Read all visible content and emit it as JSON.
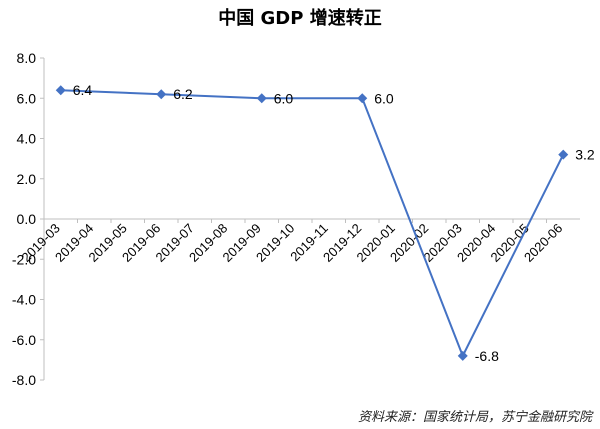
{
  "title": "中国 GDP 增速转正",
  "source": "资料来源：国家统计局，苏宁金融研究院",
  "chart_data": {
    "type": "line",
    "title": "中国 GDP 增速转正",
    "categories": [
      "2019-03",
      "2019-04",
      "2019-05",
      "2019-06",
      "2019-07",
      "2019-08",
      "2019-09",
      "2019-10",
      "2019-11",
      "2019-12",
      "2020-01",
      "2020-02",
      "2020-03",
      "2020-04",
      "2020-05",
      "2020-06"
    ],
    "series": [
      {
        "points": [
          {
            "x": "2019-03",
            "y": 6.4
          },
          {
            "x": "2019-06",
            "y": 6.2
          },
          {
            "x": "2019-09",
            "y": 6.0
          },
          {
            "x": "2019-12",
            "y": 6.0
          },
          {
            "x": "2020-03",
            "y": -6.8
          },
          {
            "x": "2020-06",
            "y": 3.2
          }
        ]
      }
    ],
    "data_labels": [
      "6.4",
      "6.2",
      "6.0",
      "6.0",
      "-6.8",
      "3.2"
    ],
    "yticks": [
      "8.0",
      "6.0",
      "4.0",
      "2.0",
      "0.0",
      "-2.0",
      "-4.0",
      "-6.0",
      "-8.0"
    ],
    "ylim": [
      -8,
      8
    ],
    "grid": false,
    "legend": "none",
    "line_color": "#4472C4",
    "axis_color": "#bfbfbf"
  }
}
